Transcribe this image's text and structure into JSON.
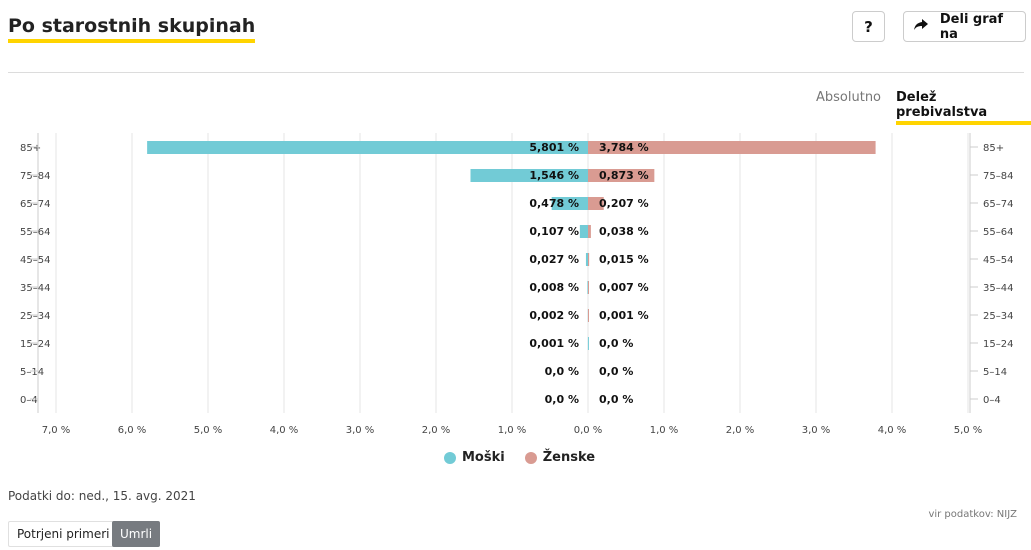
{
  "header": {
    "title": "Po starostnih skupinah",
    "help_label": "?",
    "share_label": "Deli graf na",
    "share_icon": "share-arrow-icon"
  },
  "view_toggle": {
    "absolute_label": "Absolutno",
    "share_label": "Delež prebivalstva",
    "selected": "Delež prebivalstva"
  },
  "chart_data": {
    "type": "bar",
    "orientation": "horizontal-diverging",
    "categories": [
      "85+",
      "75–84",
      "65–74",
      "55–64",
      "45–54",
      "35–44",
      "25–34",
      "15–24",
      "5–14",
      "0–4"
    ],
    "series": [
      {
        "name": "Moški",
        "color": "#72cbd6",
        "values": [
          5.801,
          1.546,
          0.478,
          0.107,
          0.027,
          0.008,
          0.002,
          0.001,
          0.0,
          0.0
        ],
        "labels": [
          "5,801 %",
          "1,546 %",
          "0,478 %",
          "0,107 %",
          "0,027 %",
          "0,008 %",
          "0,002 %",
          "0,001 %",
          "0,0 %",
          "0,0 %"
        ]
      },
      {
        "name": "Ženske",
        "color": "#d99b92",
        "values": [
          3.784,
          0.873,
          0.207,
          0.038,
          0.015,
          0.007,
          0.001,
          0.0,
          0.0,
          0.0
        ],
        "labels": [
          "3,784 %",
          "0,873 %",
          "0,207 %",
          "0,038 %",
          "0,015 %",
          "0,007 %",
          "0,001 %",
          "0,0 %",
          "0,0 %",
          "0,0 %"
        ]
      }
    ],
    "xlim_left": [
      7.0,
      0.0
    ],
    "xlim_right": [
      0.0,
      5.0
    ],
    "xticks_left": [
      "7,0 %",
      "6,0 %",
      "5,0 %",
      "4,0 %",
      "3,0 %",
      "2,0 %",
      "1,0 %",
      "0,0 %"
    ],
    "xticks_right": [
      "1,0 %",
      "2,0 %",
      "3,0 %",
      "4,0 %",
      "5,0 %"
    ],
    "grid": true,
    "legend_position": "bottom-center"
  },
  "footer": {
    "updated": "Podatki do: ned., 15. avg. 2021",
    "source": "vir podatkov: NIJZ",
    "tabs": [
      "Potrjeni primeri",
      "Umrli"
    ],
    "selected_tab": "Umrli"
  }
}
